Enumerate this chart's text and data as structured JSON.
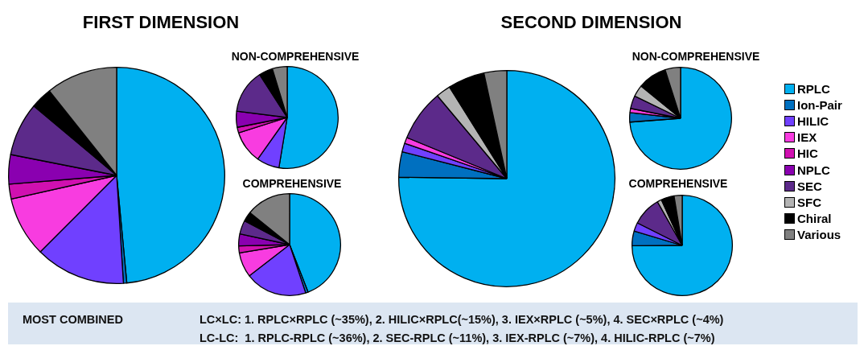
{
  "chart_data": [
    {
      "type": "pie",
      "title": "FIRST DIMENSION",
      "categories": [
        null,
        null,
        null,
        null,
        null,
        null,
        null,
        null,
        null,
        null
      ],
      "values": [
        48.5,
        0.5,
        13.5,
        9,
        2.2,
        4.4,
        8,
        0,
        3.2,
        10.7
      ],
      "colors": [
        "#00b0f0",
        "#0070c0",
        "#7040ff",
        "#f83ce0",
        "#d010b0",
        "#8a00b0",
        "#5c2a8a",
        "#b4b4b4",
        "#000000",
        "#808080"
      ]
    },
    {
      "type": "pie",
      "title": "NON-COMPREHENSIVE",
      "categories": [
        null,
        null,
        null,
        null,
        null,
        null,
        null,
        null,
        null,
        null
      ],
      "values": [
        52.6,
        0,
        7.2,
        10.3,
        1.8,
        5.1,
        13.9,
        0,
        4.4,
        4.7
      ],
      "colors": [
        "#00b0f0",
        "#0070c0",
        "#7040ff",
        "#f83ce0",
        "#d010b0",
        "#8a00b0",
        "#5c2a8a",
        "#b4b4b4",
        "#000000",
        "#808080"
      ]
    },
    {
      "type": "pie",
      "title": "COMPREHENSIVE",
      "categories": [
        null,
        null,
        null,
        null,
        null,
        null,
        null,
        null,
        null,
        null
      ],
      "values": [
        44.1,
        0.8,
        19.6,
        7.9,
        2.2,
        3.8,
        4.3,
        0,
        3.1,
        14.2
      ],
      "colors": [
        "#00b0f0",
        "#0070c0",
        "#7040ff",
        "#f83ce0",
        "#d010b0",
        "#8a00b0",
        "#5c2a8a",
        "#b4b4b4",
        "#000000",
        "#808080"
      ]
    },
    {
      "type": "pie",
      "title": "SECOND DIMENSION",
      "legend": "right",
      "categories": [
        "RPLC",
        "Ion-Pair",
        "HILIC",
        "IEX",
        "HIC",
        "NPLC",
        "SEC",
        "SFC",
        "Chiral",
        "Various"
      ],
      "values": [
        75.2,
        3.8,
        1.3,
        0.9,
        0,
        0,
        7.7,
        2.2,
        5.5,
        3.4
      ],
      "colors": [
        "#00b0f0",
        "#0070c0",
        "#7040ff",
        "#f83ce0",
        "#d010b0",
        "#8a00b0",
        "#5c2a8a",
        "#b4b4b4",
        "#000000",
        "#808080"
      ]
    },
    {
      "type": "pie",
      "title": "NON-COMPREHENSIVE",
      "categories": [
        null,
        null,
        null,
        null,
        null,
        null,
        null,
        null,
        null,
        null
      ],
      "values": [
        73.8,
        3,
        0,
        1.3,
        0,
        0,
        4.1,
        3.7,
        9.2,
        4.9
      ],
      "colors": [
        "#00b0f0",
        "#0070c0",
        "#7040ff",
        "#f83ce0",
        "#d010b0",
        "#8a00b0",
        "#5c2a8a",
        "#b4b4b4",
        "#000000",
        "#808080"
      ]
    },
    {
      "type": "pie",
      "title": "COMPREHENSIVE",
      "categories": [
        null,
        null,
        null,
        null,
        null,
        null,
        null,
        null,
        null,
        null
      ],
      "values": [
        74.9,
        4.7,
        2.8,
        0,
        0,
        0,
        9.4,
        1.4,
        4.2,
        2.6
      ],
      "colors": [
        "#00b0f0",
        "#0070c0",
        "#7040ff",
        "#f83ce0",
        "#d010b0",
        "#8a00b0",
        "#5c2a8a",
        "#b4b4b4",
        "#000000",
        "#808080"
      ]
    },
    {
      "type": "other",
      "title": "MOST COMBINED",
      "annotations": [
        "LC×LC: 1. RPLC×RPLC (~35%), 2. HILIC×RPLC(~15%), 3. IEX×RPLC (~5%), 4. SEC×RPLC (~4%)",
        "LC-LC:  1. RPLC-RPLC (~36%), 2. SEC-RPLC (~11%), 3. IEX-RPLC (~7%), 4. HILIC-RPLC (~7%)"
      ]
    }
  ]
}
